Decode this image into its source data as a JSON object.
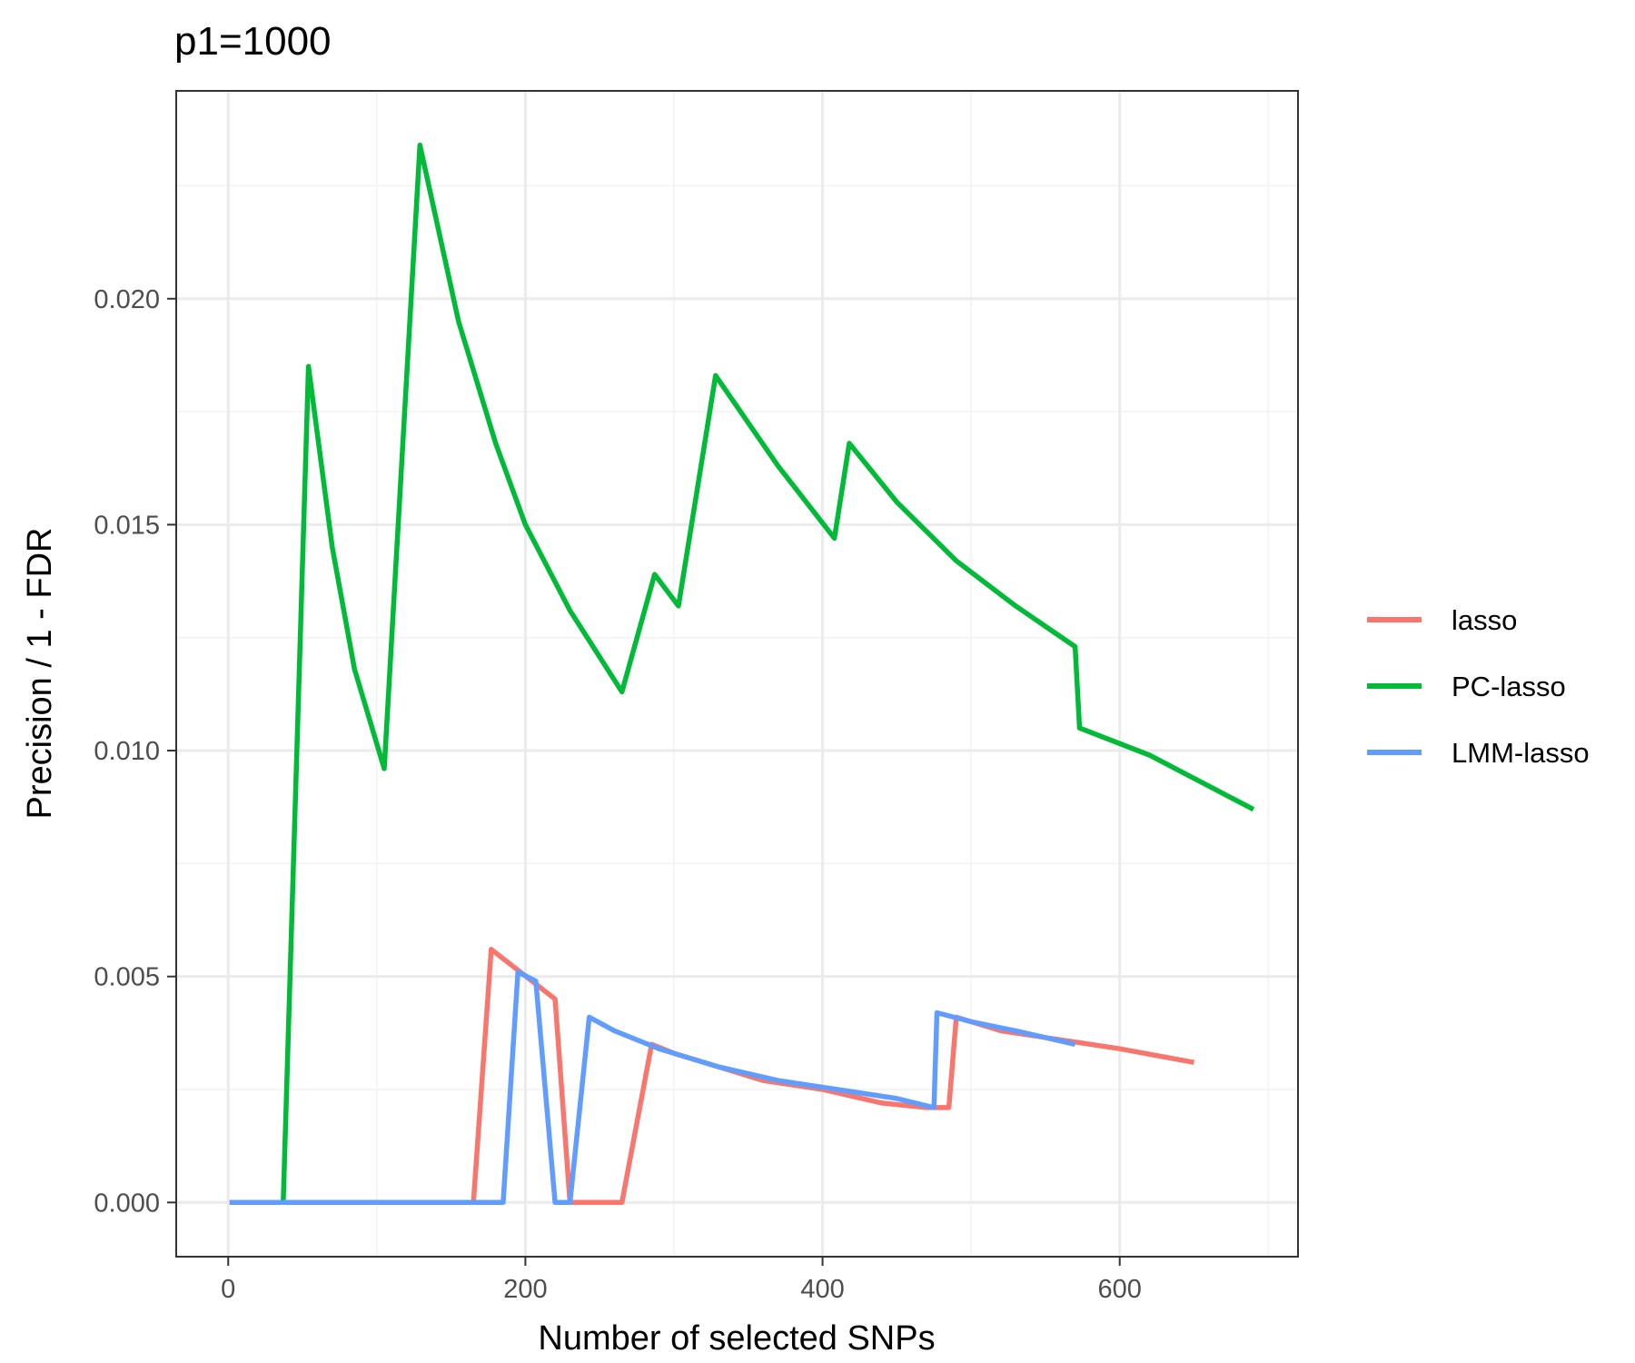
{
  "chart_data": {
    "type": "line",
    "title": "p1=1000",
    "xlabel": "Number of selected SNPs",
    "ylabel": "Precision / 1 - FDR",
    "xlim": [
      -35,
      720
    ],
    "ylim": [
      -0.0012,
      0.0246
    ],
    "x_ticks": [
      0,
      200,
      400,
      600
    ],
    "x_tick_labels": [
      "0",
      "200",
      "400",
      "600"
    ],
    "y_ticks": [
      0,
      0.005,
      0.01,
      0.015,
      0.02
    ],
    "y_tick_labels": [
      "0.000",
      "0.005",
      "0.010",
      "0.015",
      "0.020"
    ],
    "x_minor_ticks": [
      100,
      300,
      500,
      700
    ],
    "y_minor_ticks": [
      0.0025,
      0.0075,
      0.0125,
      0.0175,
      0.0225
    ],
    "grid": true,
    "legend_position": "right",
    "series": [
      {
        "name": "lasso",
        "color": "#F8766D",
        "x": [
          1,
          165,
          177,
          220,
          230,
          265,
          285,
          300,
          330,
          360,
          400,
          440,
          470,
          485,
          490,
          520,
          560,
          600,
          650
        ],
        "y": [
          0,
          0,
          0.0056,
          0.0045,
          0,
          0,
          0.0035,
          0.0033,
          0.003,
          0.0027,
          0.0025,
          0.0022,
          0.0021,
          0.0021,
          0.0041,
          0.0038,
          0.0036,
          0.0034,
          0.0031
        ]
      },
      {
        "name": "PC-lasso",
        "color": "#00BA38",
        "x": [
          1,
          37,
          54,
          70,
          85,
          105,
          129,
          155,
          180,
          200,
          230,
          265,
          287,
          303,
          328,
          370,
          408,
          418,
          450,
          490,
          530,
          570,
          573,
          620,
          690
        ],
        "y": [
          0,
          0,
          0.0185,
          0.0145,
          0.0118,
          0.0096,
          0.0234,
          0.0195,
          0.0168,
          0.015,
          0.0131,
          0.0113,
          0.0139,
          0.0132,
          0.0183,
          0.0163,
          0.0147,
          0.0168,
          0.0155,
          0.0142,
          0.0132,
          0.0123,
          0.0105,
          0.0099,
          0.0087
        ]
      },
      {
        "name": "LMM-lasso",
        "color": "#619CFF",
        "x": [
          1,
          185,
          195,
          207,
          220,
          230,
          243,
          260,
          290,
          330,
          370,
          410,
          450,
          475,
          477,
          500,
          530,
          570
        ],
        "y": [
          0,
          0,
          0.0051,
          0.0049,
          0,
          0,
          0.0041,
          0.0038,
          0.0034,
          0.003,
          0.0027,
          0.0025,
          0.0023,
          0.0021,
          0.0042,
          0.004,
          0.0038,
          0.0035
        ]
      }
    ]
  }
}
